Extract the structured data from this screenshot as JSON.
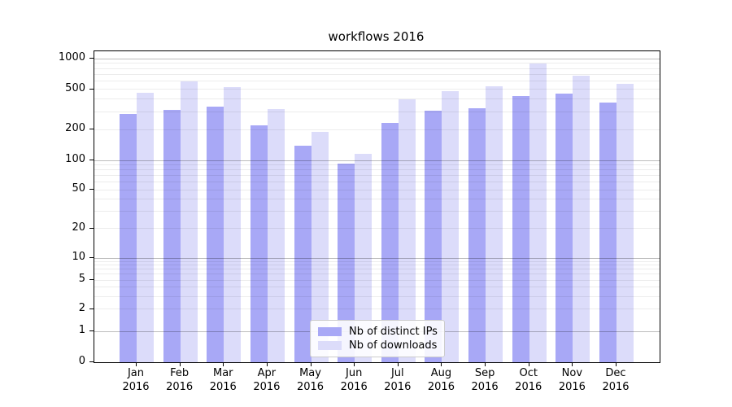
{
  "figure": {
    "kind": "matplotlib-bar-chart"
  },
  "colors": {
    "bar_distinct_ips": "#a8a8f6",
    "bar_downloads": "#dcdcfa",
    "major_gridline": "#bdbdbd",
    "minor_gridline": "#ebebeb",
    "axis": "#000000",
    "legend_border": "#cccccc"
  },
  "chart_data": {
    "type": "bar",
    "title": "workflows 2016",
    "xlabel": "",
    "ylabel": "",
    "categories": [
      "Jan",
      "Feb",
      "Mar",
      "Apr",
      "May",
      "Jun",
      "Jul",
      "Aug",
      "Sep",
      "Oct",
      "Nov",
      "Dec"
    ],
    "category_year": "2016",
    "series": [
      {
        "name": "Nb of distinct IPs",
        "color": "#a8a8f6",
        "values": [
          285,
          315,
          340,
          220,
          140,
          93,
          235,
          310,
          325,
          430,
          450,
          370
        ]
      },
      {
        "name": "Nb of downloads",
        "color": "#dcdcfa",
        "values": [
          460,
          600,
          525,
          320,
          190,
          115,
          395,
          475,
          535,
          900,
          675,
          560
        ]
      }
    ],
    "yscale": "symlog",
    "yticks": [
      0,
      1,
      2,
      5,
      10,
      20,
      50,
      100,
      200,
      500,
      1000
    ],
    "ylim": [
      0,
      1300
    ],
    "grid": true,
    "legend_position": "lower-center"
  }
}
